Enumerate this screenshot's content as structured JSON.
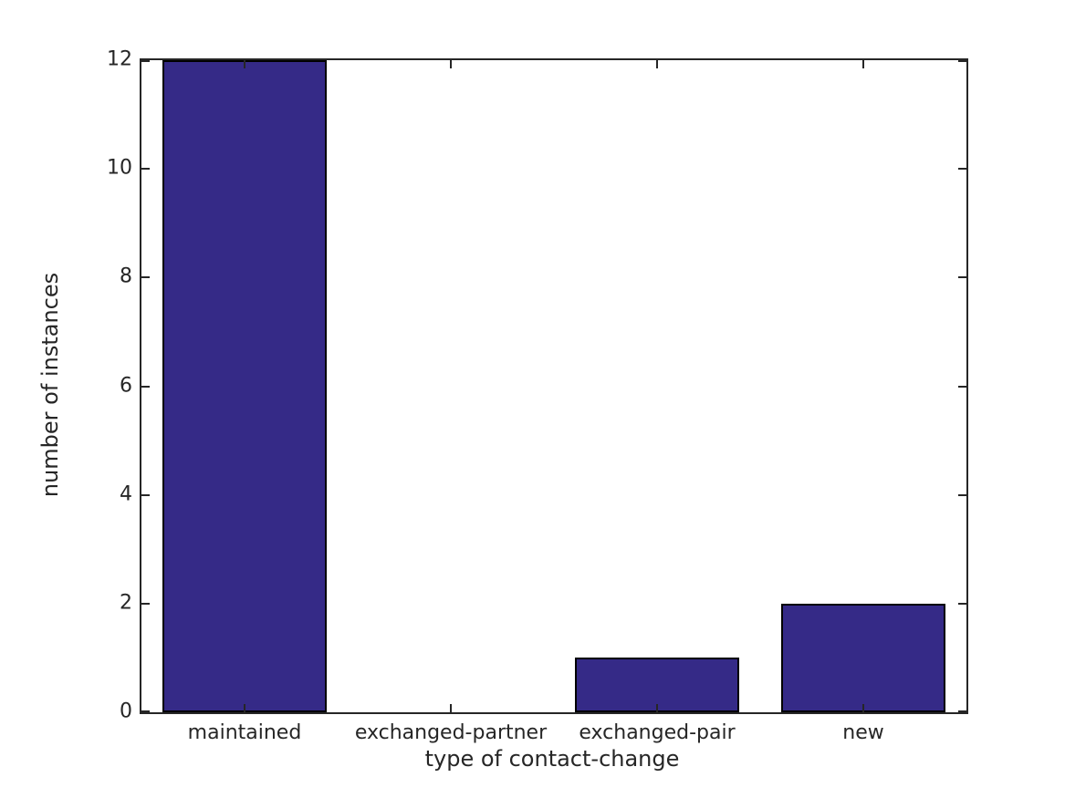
{
  "chart_data": {
    "type": "bar",
    "title": "",
    "xlabel": "type of contact-change",
    "ylabel": "number of instances",
    "categories": [
      "maintained",
      "exchanged-partner",
      "exchanged-pair",
      "new"
    ],
    "values": [
      12,
      0,
      1,
      2
    ],
    "ylim": [
      0,
      12
    ],
    "yticks": [
      0,
      2,
      4,
      6,
      8,
      10,
      12
    ],
    "bar_width_fraction": 0.8,
    "grid": "off",
    "legend": "none",
    "colors": {
      "bar_fill": "#352a87",
      "bar_edge": "#000000",
      "axis": "#262626",
      "text": "#262626",
      "background": "#ffffff"
    }
  }
}
